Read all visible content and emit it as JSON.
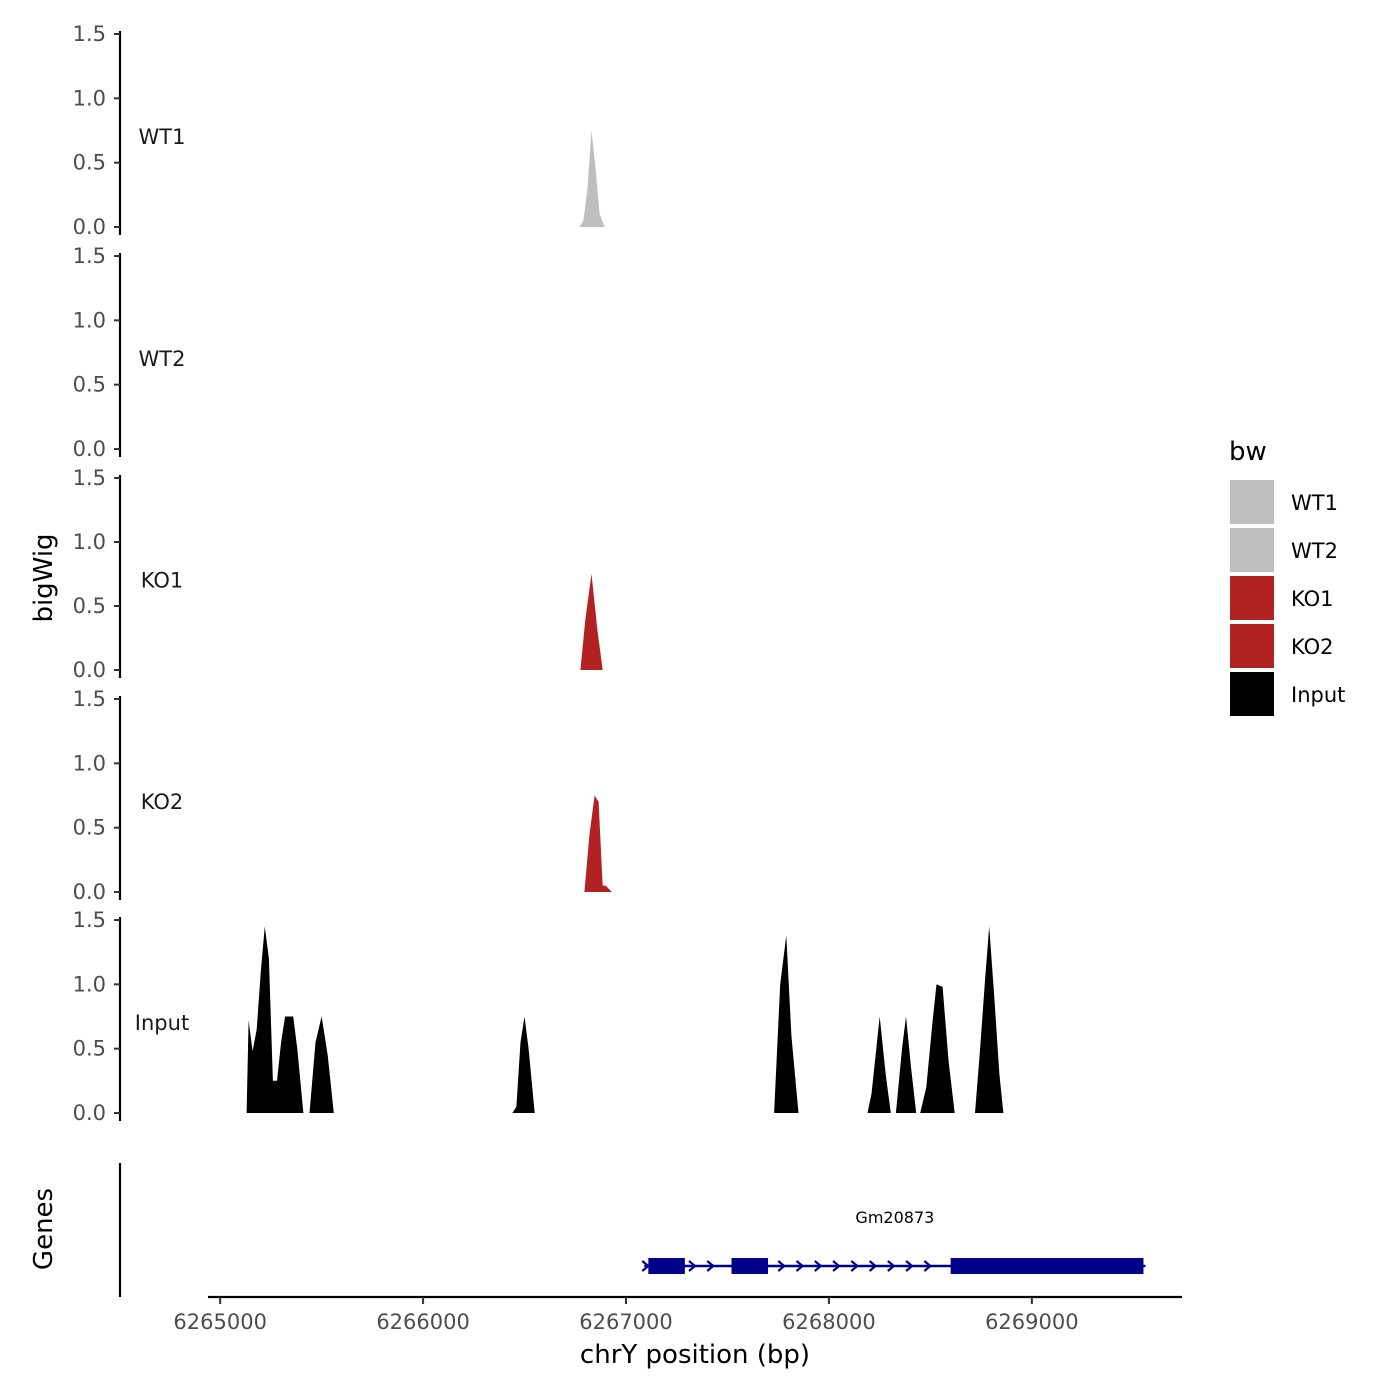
{
  "chart_data": {
    "type": "area",
    "ylabel": "bigWig",
    "xlabel": "chrY position (bp)",
    "ylim": [
      0,
      1.5
    ],
    "yticks": [
      "0.0",
      "0.5",
      "1.0",
      "1.5"
    ],
    "xlim": [
      6264940,
      6269740
    ],
    "xticks": [
      6265000,
      6266000,
      6267000,
      6268000,
      6269000
    ],
    "xtick_labels": [
      "6265000",
      "6266000",
      "6267000",
      "6268000",
      "6269000"
    ],
    "tracks": [
      {
        "name": "WT1",
        "color": "#bebebe",
        "points": [
          [
            6266770,
            0
          ],
          [
            6266790,
            0.05
          ],
          [
            6266810,
            0.3
          ],
          [
            6266830,
            0.75
          ],
          [
            6266850,
            0.45
          ],
          [
            6266870,
            0.1
          ],
          [
            6266895,
            0
          ]
        ]
      },
      {
        "name": "WT2",
        "color": "#bebebe",
        "points": []
      },
      {
        "name": "KO1",
        "color": "#b22222",
        "points": [
          [
            6266775,
            0
          ],
          [
            6266800,
            0.4
          ],
          [
            6266830,
            0.75
          ],
          [
            6266860,
            0.3
          ],
          [
            6266885,
            0
          ]
        ]
      },
      {
        "name": "KO2",
        "color": "#b22222",
        "points": [
          [
            6266795,
            0
          ],
          [
            6266820,
            0.45
          ],
          [
            6266845,
            0.75
          ],
          [
            6266865,
            0.7
          ],
          [
            6266885,
            0.05
          ],
          [
            6266900,
            0.05
          ],
          [
            6266930,
            0
          ]
        ]
      },
      {
        "name": "Input",
        "color": "#000000",
        "points": [
          [
            6265130,
            0
          ],
          [
            6265140,
            0.72
          ],
          [
            6265160,
            0.48
          ],
          [
            6265180,
            0.65
          ],
          [
            6265200,
            1.1
          ],
          [
            6265220,
            1.45
          ],
          [
            6265240,
            1.2
          ],
          [
            6265260,
            0.25
          ],
          [
            6265280,
            0.25
          ],
          [
            6265300,
            0.55
          ],
          [
            6265320,
            0.75
          ],
          [
            6265340,
            0.75
          ],
          [
            6265360,
            0.75
          ],
          [
            6265380,
            0.5
          ],
          [
            6265410,
            0
          ],
          [
            6265440,
            0
          ],
          [
            6265470,
            0.55
          ],
          [
            6265500,
            0.75
          ],
          [
            6265530,
            0.45
          ],
          [
            6265560,
            0
          ],
          [
            6266440,
            0
          ],
          [
            6266460,
            0.05
          ],
          [
            6266480,
            0.55
          ],
          [
            6266500,
            0.75
          ],
          [
            6266520,
            0.5
          ],
          [
            6266550,
            0
          ],
          [
            6267730,
            0
          ],
          [
            6267760,
            1.0
          ],
          [
            6267790,
            1.38
          ],
          [
            6267815,
            0.6
          ],
          [
            6267850,
            0
          ],
          [
            6268190,
            0
          ],
          [
            6268210,
            0.15
          ],
          [
            6268250,
            0.75
          ],
          [
            6268280,
            0.3
          ],
          [
            6268305,
            0
          ],
          [
            6268330,
            0
          ],
          [
            6268360,
            0.5
          ],
          [
            6268380,
            0.75
          ],
          [
            6268405,
            0.35
          ],
          [
            6268430,
            0
          ],
          [
            6268450,
            0
          ],
          [
            6268480,
            0.2
          ],
          [
            6268510,
            0.7
          ],
          [
            6268530,
            1.0
          ],
          [
            6268560,
            0.98
          ],
          [
            6268590,
            0.4
          ],
          [
            6268620,
            0
          ],
          [
            6268720,
            0
          ],
          [
            6268745,
            0.5
          ],
          [
            6268770,
            1.05
          ],
          [
            6268790,
            1.45
          ],
          [
            6268815,
            0.9
          ],
          [
            6268840,
            0.3
          ],
          [
            6268860,
            0
          ]
        ]
      }
    ],
    "legend": {
      "title": "bw",
      "position": "right",
      "entries": [
        {
          "label": "WT1",
          "color": "#bebebe"
        },
        {
          "label": "WT2",
          "color": "#bebebe"
        },
        {
          "label": "KO1",
          "color": "#b22222"
        },
        {
          "label": "KO2",
          "color": "#b22222"
        },
        {
          "label": "Input",
          "color": "#000000"
        }
      ]
    },
    "genes": {
      "title": "Genes",
      "color": "#00008b",
      "items": [
        {
          "name": "Gm20873",
          "start": 6267090,
          "end": 6269560,
          "strand": "+",
          "exons": [
            [
              6267110,
              6267290
            ],
            [
              6267520,
              6267700
            ],
            [
              6268600,
              6269550
            ]
          ],
          "arrows": [
            6267330,
            6267420,
            6267770,
            6267860,
            6267950,
            6268040,
            6268130,
            6268220,
            6268310,
            6268400,
            6268490
          ]
        }
      ]
    }
  }
}
